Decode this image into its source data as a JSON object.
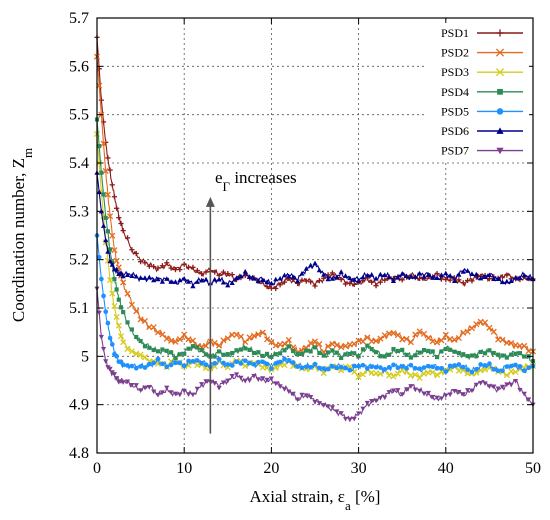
{
  "chart_data": {
    "type": "line",
    "title": "",
    "xlabel": "Axial strain, ε",
    "xlabel_sub": "a",
    "xlabel_unit": " [%]",
    "ylabel": "Coordination number, Z",
    "ylabel_sub": "m",
    "xlim": [
      0,
      50
    ],
    "ylim": [
      4.8,
      5.7
    ],
    "xticks": [
      0,
      10,
      20,
      30,
      40,
      50
    ],
    "xtick_labels": [
      "0",
      "10",
      "20",
      "30",
      "40",
      "50"
    ],
    "yticks": [
      4.8,
      4.9,
      5.0,
      5.1,
      5.2,
      5.3,
      5.4,
      5.5,
      5.6,
      5.7
    ],
    "ytick_labels": [
      "4.8",
      "4.9",
      "5",
      "5.1",
      "5.2",
      "5.3",
      "5.4",
      "5.5",
      "5.6",
      "5.7"
    ],
    "grid": true,
    "legend_position": "top-right",
    "annotation": {
      "text": "e",
      "sub": "Γ",
      "suffix": " increases",
      "arrow_x": 13,
      "arrow_y_from": 4.84,
      "arrow_y_to": 5.33
    },
    "x": [
      0,
      0.5,
      1,
      1.5,
      2,
      2.5,
      3,
      4,
      5,
      6,
      7,
      8,
      9,
      10,
      11,
      12,
      13,
      14,
      15,
      16,
      17,
      18,
      19,
      20,
      21,
      22,
      23,
      24,
      25,
      26,
      27,
      28,
      29,
      30,
      31,
      32,
      33,
      34,
      35,
      36,
      37,
      38,
      39,
      40,
      41,
      42,
      43,
      44,
      45,
      46,
      47,
      48,
      49,
      50
    ],
    "series": [
      {
        "name": "PSD1",
        "color": "#8b1a1a",
        "marker": "plus",
        "values": [
          5.66,
          5.53,
          5.44,
          5.38,
          5.33,
          5.29,
          5.26,
          5.22,
          5.2,
          5.19,
          5.18,
          5.19,
          5.18,
          5.19,
          5.18,
          5.17,
          5.18,
          5.17,
          5.17,
          5.16,
          5.17,
          5.16,
          5.15,
          5.14,
          5.15,
          5.16,
          5.15,
          5.16,
          5.15,
          5.16,
          5.17,
          5.16,
          5.15,
          5.15,
          5.16,
          5.15,
          5.16,
          5.16,
          5.16,
          5.17,
          5.16,
          5.16,
          5.17,
          5.16,
          5.16,
          5.15,
          5.16,
          5.17,
          5.16,
          5.16,
          5.17,
          5.16,
          5.16,
          5.16
        ]
      },
      {
        "name": "PSD2",
        "color": "#e36b1f",
        "marker": "x",
        "values": [
          5.62,
          5.5,
          5.38,
          5.29,
          5.22,
          5.18,
          5.15,
          5.11,
          5.08,
          5.06,
          5.05,
          5.04,
          5.03,
          5.04,
          5.03,
          5.02,
          5.03,
          5.02,
          5.04,
          5.05,
          5.03,
          5.04,
          5.05,
          5.03,
          5.02,
          5.03,
          5.01,
          5.02,
          5.03,
          5.01,
          5.03,
          5.02,
          5.02,
          5.03,
          5.04,
          5.03,
          5.04,
          5.05,
          5.04,
          5.03,
          5.05,
          5.04,
          5.03,
          5.04,
          5.03,
          5.05,
          5.06,
          5.07,
          5.06,
          5.04,
          5.03,
          5.02,
          5.02,
          5.01
        ]
      },
      {
        "name": "PSD3",
        "color": "#d4cc1e",
        "marker": "x",
        "values": [
          5.46,
          5.34,
          5.24,
          5.16,
          5.1,
          5.06,
          5.03,
          5.01,
          5.0,
          4.99,
          4.99,
          4.98,
          4.99,
          4.98,
          4.99,
          4.98,
          4.97,
          4.99,
          4.98,
          4.99,
          4.98,
          4.99,
          4.98,
          4.97,
          4.98,
          4.99,
          4.98,
          4.97,
          4.98,
          4.97,
          4.98,
          4.97,
          4.98,
          4.96,
          4.97,
          4.96,
          4.97,
          4.96,
          4.97,
          4.96,
          4.96,
          4.97,
          4.96,
          4.97,
          4.98,
          4.97,
          4.96,
          4.97,
          4.98,
          4.97,
          4.96,
          4.97,
          4.98,
          4.98
        ]
      },
      {
        "name": "PSD4",
        "color": "#2e8b57",
        "marker": "square",
        "values": [
          5.49,
          5.38,
          5.29,
          5.22,
          5.16,
          5.12,
          5.09,
          5.05,
          5.03,
          5.02,
          5.01,
          5.01,
          5.0,
          5.01,
          5.02,
          5.01,
          5.0,
          5.01,
          5.0,
          5.01,
          5.02,
          5.01,
          5.0,
          5.0,
          5.01,
          5.02,
          5.0,
          5.01,
          5.02,
          5.0,
          5.01,
          5.0,
          5.01,
          5.0,
          5.02,
          5.01,
          5.0,
          5.01,
          5.01,
          5.0,
          5.01,
          5.01,
          5.0,
          5.02,
          5.01,
          5.0,
          5.0,
          5.01,
          5.01,
          5.0,
          5.0,
          5.01,
          5.0,
          4.99
        ]
      },
      {
        "name": "PSD5",
        "color": "#1e90ff",
        "marker": "circle",
        "values": [
          5.25,
          5.16,
          5.09,
          5.04,
          5.01,
          4.99,
          4.98,
          4.98,
          4.98,
          4.98,
          4.99,
          4.98,
          4.99,
          4.98,
          4.99,
          4.99,
          4.98,
          4.99,
          4.98,
          4.99,
          4.99,
          4.98,
          4.99,
          4.98,
          4.99,
          4.99,
          4.98,
          4.98,
          4.98,
          4.97,
          4.98,
          4.98,
          4.97,
          4.98,
          4.98,
          4.98,
          4.97,
          4.98,
          4.98,
          4.98,
          4.97,
          4.98,
          4.98,
          4.97,
          4.98,
          4.98,
          4.97,
          4.98,
          4.98,
          4.97,
          4.98,
          4.98,
          4.97,
          4.98
        ]
      },
      {
        "name": "PSD6",
        "color": "#00008b",
        "marker": "triangle",
        "values": [
          5.38,
          5.3,
          5.24,
          5.2,
          5.18,
          5.17,
          5.17,
          5.17,
          5.16,
          5.16,
          5.16,
          5.16,
          5.15,
          5.16,
          5.15,
          5.16,
          5.15,
          5.16,
          5.15,
          5.16,
          5.17,
          5.16,
          5.16,
          5.15,
          5.16,
          5.17,
          5.16,
          5.18,
          5.19,
          5.17,
          5.16,
          5.17,
          5.16,
          5.16,
          5.17,
          5.16,
          5.17,
          5.16,
          5.17,
          5.16,
          5.17,
          5.17,
          5.16,
          5.17,
          5.16,
          5.18,
          5.17,
          5.16,
          5.17,
          5.16,
          5.15,
          5.16,
          5.17,
          5.16
        ]
      },
      {
        "name": "PSD7",
        "color": "#7b3f8f",
        "marker": "triangle-down",
        "values": [
          5.14,
          5.04,
          4.99,
          4.97,
          4.96,
          4.95,
          4.95,
          4.94,
          4.93,
          4.94,
          4.92,
          4.93,
          4.92,
          4.93,
          4.92,
          4.94,
          4.95,
          4.94,
          4.95,
          4.96,
          4.95,
          4.96,
          4.95,
          4.95,
          4.94,
          4.93,
          4.91,
          4.92,
          4.91,
          4.9,
          4.89,
          4.88,
          4.87,
          4.88,
          4.9,
          4.91,
          4.92,
          4.93,
          4.92,
          4.94,
          4.93,
          4.92,
          4.91,
          4.92,
          4.93,
          4.92,
          4.93,
          4.95,
          4.94,
          4.93,
          4.94,
          4.95,
          4.92,
          4.9
        ]
      }
    ]
  }
}
